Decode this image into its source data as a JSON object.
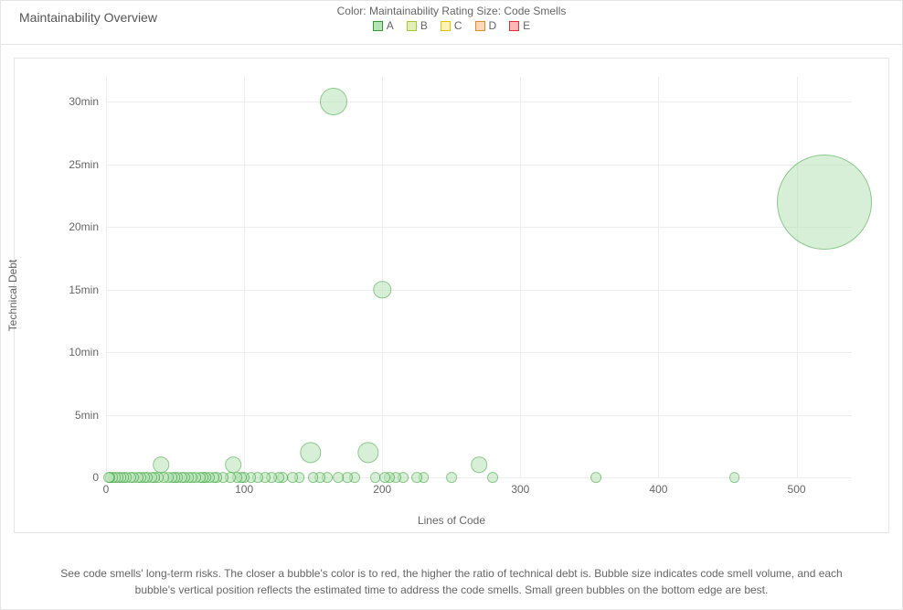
{
  "title": "Maintainability Overview",
  "legend": {
    "description": "Color: Maintainability Rating   Size: Code Smells",
    "items": [
      {
        "label": "A",
        "fill": "#b6e2b6",
        "stroke": "#2e9e2e"
      },
      {
        "label": "B",
        "fill": "#e2f0b6",
        "stroke": "#9ecc2e"
      },
      {
        "label": "C",
        "fill": "#fff2b6",
        "stroke": "#e6c200"
      },
      {
        "label": "D",
        "fill": "#ffd9b6",
        "stroke": "#e68a2e"
      },
      {
        "label": "E",
        "fill": "#ffb6b6",
        "stroke": "#e62e2e"
      }
    ]
  },
  "chart": {
    "type": "bubble",
    "xlabel": "Lines of Code",
    "ylabel": "Technical Debt",
    "xlim": [
      0,
      540
    ],
    "ylim": [
      0,
      32
    ],
    "xticks": [
      {
        "v": 0,
        "label": "0"
      },
      {
        "v": 100,
        "label": "100"
      },
      {
        "v": 200,
        "label": "200"
      },
      {
        "v": 300,
        "label": "300"
      },
      {
        "v": 400,
        "label": "400"
      },
      {
        "v": 500,
        "label": "500"
      }
    ],
    "yticks": [
      {
        "v": 0,
        "label": "0"
      },
      {
        "v": 5,
        "label": "5min"
      },
      {
        "v": 10,
        "label": "10min"
      },
      {
        "v": 15,
        "label": "15min"
      },
      {
        "v": 20,
        "label": "20min"
      },
      {
        "v": 25,
        "label": "25min"
      },
      {
        "v": 30,
        "label": "30min"
      }
    ],
    "gridline_color": "#eeeeee",
    "background_color": "#ffffff",
    "bubble_fill": "#b7e2b7",
    "bubble_stroke": "#2e9e2e",
    "bubble_fill_opacity": 0.55,
    "size_scale": {
      "min_r": 4,
      "max_r": 52,
      "min_s": 0,
      "max_s": 10
    },
    "points": [
      {
        "x": 520,
        "y": 22,
        "s": 10.0
      },
      {
        "x": 165,
        "y": 30,
        "s": 2.3
      },
      {
        "x": 200,
        "y": 15,
        "s": 1.2
      },
      {
        "x": 148,
        "y": 2,
        "s": 1.6
      },
      {
        "x": 190,
        "y": 2,
        "s": 1.6
      },
      {
        "x": 270,
        "y": 1,
        "s": 1.0
      },
      {
        "x": 40,
        "y": 1,
        "s": 1.0
      },
      {
        "x": 92,
        "y": 1,
        "s": 1.0
      },
      {
        "x": 355,
        "y": 0,
        "s": 0.4
      },
      {
        "x": 455,
        "y": 0,
        "s": 0.4
      },
      {
        "x": 280,
        "y": 0,
        "s": 0.4
      },
      {
        "x": 250,
        "y": 0,
        "s": 0.4
      },
      {
        "x": 230,
        "y": 0,
        "s": 0.4
      },
      {
        "x": 225,
        "y": 0,
        "s": 0.4
      },
      {
        "x": 215,
        "y": 0,
        "s": 0.4
      },
      {
        "x": 210,
        "y": 0,
        "s": 0.4
      },
      {
        "x": 205,
        "y": 0,
        "s": 0.4
      },
      {
        "x": 202,
        "y": 0,
        "s": 0.4
      },
      {
        "x": 195,
        "y": 0,
        "s": 0.4
      },
      {
        "x": 180,
        "y": 0,
        "s": 0.4
      },
      {
        "x": 175,
        "y": 0,
        "s": 0.4
      },
      {
        "x": 168,
        "y": 0,
        "s": 0.4
      },
      {
        "x": 160,
        "y": 0,
        "s": 0.4
      },
      {
        "x": 155,
        "y": 0,
        "s": 0.4
      },
      {
        "x": 150,
        "y": 0,
        "s": 0.4
      },
      {
        "x": 140,
        "y": 0,
        "s": 0.4
      },
      {
        "x": 135,
        "y": 0,
        "s": 0.4
      },
      {
        "x": 128,
        "y": 0,
        "s": 0.4
      },
      {
        "x": 125,
        "y": 0,
        "s": 0.4
      },
      {
        "x": 120,
        "y": 0,
        "s": 0.4
      },
      {
        "x": 115,
        "y": 0,
        "s": 0.4
      },
      {
        "x": 110,
        "y": 0,
        "s": 0.4
      },
      {
        "x": 105,
        "y": 0,
        "s": 0.4
      },
      {
        "x": 100,
        "y": 0,
        "s": 0.4
      },
      {
        "x": 98,
        "y": 0,
        "s": 0.4
      },
      {
        "x": 95,
        "y": 0,
        "s": 0.4
      },
      {
        "x": 90,
        "y": 0,
        "s": 0.4
      },
      {
        "x": 85,
        "y": 0,
        "s": 0.4
      },
      {
        "x": 80,
        "y": 0,
        "s": 0.4
      },
      {
        "x": 78,
        "y": 0,
        "s": 0.4
      },
      {
        "x": 75,
        "y": 0,
        "s": 0.4
      },
      {
        "x": 72,
        "y": 0,
        "s": 0.4
      },
      {
        "x": 70,
        "y": 0,
        "s": 0.4
      },
      {
        "x": 68,
        "y": 0,
        "s": 0.4
      },
      {
        "x": 65,
        "y": 0,
        "s": 0.4
      },
      {
        "x": 62,
        "y": 0,
        "s": 0.4
      },
      {
        "x": 60,
        "y": 0,
        "s": 0.4
      },
      {
        "x": 57,
        "y": 0,
        "s": 0.4
      },
      {
        "x": 55,
        "y": 0,
        "s": 0.4
      },
      {
        "x": 52,
        "y": 0,
        "s": 0.4
      },
      {
        "x": 50,
        "y": 0,
        "s": 0.4
      },
      {
        "x": 48,
        "y": 0,
        "s": 0.4
      },
      {
        "x": 45,
        "y": 0,
        "s": 0.4
      },
      {
        "x": 42,
        "y": 0,
        "s": 0.4
      },
      {
        "x": 38,
        "y": 0,
        "s": 0.4
      },
      {
        "x": 35,
        "y": 0,
        "s": 0.4
      },
      {
        "x": 33,
        "y": 0,
        "s": 0.4
      },
      {
        "x": 30,
        "y": 0,
        "s": 0.4
      },
      {
        "x": 28,
        "y": 0,
        "s": 0.4
      },
      {
        "x": 25,
        "y": 0,
        "s": 0.4
      },
      {
        "x": 23,
        "y": 0,
        "s": 0.4
      },
      {
        "x": 20,
        "y": 0,
        "s": 0.4
      },
      {
        "x": 18,
        "y": 0,
        "s": 0.4
      },
      {
        "x": 15,
        "y": 0,
        "s": 0.4
      },
      {
        "x": 13,
        "y": 0,
        "s": 0.4
      },
      {
        "x": 11,
        "y": 0,
        "s": 0.4
      },
      {
        "x": 9,
        "y": 0,
        "s": 0.4
      },
      {
        "x": 7,
        "y": 0,
        "s": 0.4
      },
      {
        "x": 5,
        "y": 0,
        "s": 0.4
      },
      {
        "x": 3,
        "y": 0,
        "s": 0.4
      },
      {
        "x": 2,
        "y": 0,
        "s": 0.4
      }
    ]
  },
  "footer": "See code smells' long-term risks. The closer a bubble's color is to red, the higher the ratio of technical debt is. Bubble size indicates code smell volume, and each bubble's vertical position reflects the estimated time to address the code smells. Small green bubbles on the bottom edge are best."
}
